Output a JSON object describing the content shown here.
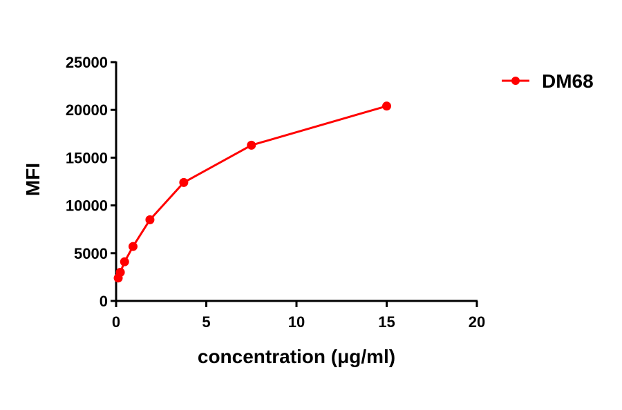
{
  "chart_data": {
    "type": "line",
    "title": "",
    "xlabel": "concentration (μg/ml)",
    "ylabel": "MFI",
    "xlim": [
      0,
      20
    ],
    "ylim": [
      0,
      25000
    ],
    "xticks": [
      0,
      5,
      10,
      15,
      20
    ],
    "yticks": [
      0,
      5000,
      10000,
      15000,
      20000,
      25000
    ],
    "grid": false,
    "legend_position": "top-right outside",
    "series": [
      {
        "name": "DM68",
        "color": "#ff0000",
        "marker": "circle",
        "x": [
          0.117,
          0.234,
          0.469,
          0.9375,
          1.875,
          3.75,
          7.5,
          15
        ],
        "y": [
          2400,
          3000,
          4100,
          5700,
          8500,
          12400,
          16300,
          20400
        ]
      }
    ]
  },
  "legend": {
    "label": "DM68"
  },
  "axes": {
    "x_title": "concentration (μg/ml)",
    "y_title": "MFI"
  }
}
